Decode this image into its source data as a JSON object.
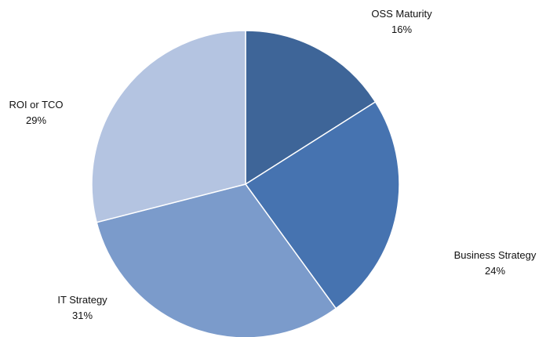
{
  "chart_data": {
    "type": "pie",
    "title": "",
    "start_angle": "12 o'clock, clockwise",
    "slices": [
      {
        "label": "OSS Maturity",
        "value": 16,
        "display": "16%",
        "color": "#3e6598"
      },
      {
        "label": "Business Strategy",
        "value": 24,
        "display": "24%",
        "color": "#4673b0"
      },
      {
        "label": "IT Strategy",
        "value": 31,
        "display": "31%",
        "color": "#7b9bcb"
      },
      {
        "label": "ROI or TCO",
        "value": 29,
        "display": "29%",
        "color": "#b4c4e1"
      }
    ]
  }
}
